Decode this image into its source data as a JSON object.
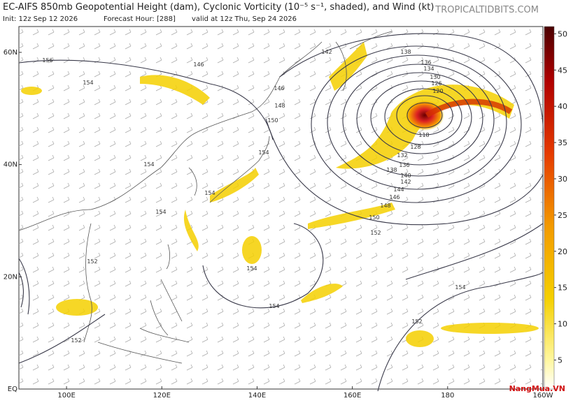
{
  "header": {
    "title": "EC-AIFS 850mb Geopotential Height (dam), Cyclonic Vorticity (10⁻⁵ s⁻¹, shaded), and Wind (kt)",
    "init": "Init: 12z Sep 12 2026",
    "forecast": "Forecast Hour: [288]",
    "valid": "valid at 12z Thu, Sep 24 2026",
    "brand": "TROPICALTIDBITS.COM"
  },
  "map": {
    "lon_lim": [
      90,
      200
    ],
    "lat_lim": [
      0,
      64.6
    ],
    "lon_ticks": [
      {
        "value": 100,
        "label": "100E"
      },
      {
        "value": 120,
        "label": "120E"
      },
      {
        "value": 140,
        "label": "140E"
      },
      {
        "value": 160,
        "label": "160E"
      },
      {
        "value": 180,
        "label": "180"
      },
      {
        "value": 200,
        "label": "160W"
      }
    ],
    "lat_ticks": [
      {
        "value": 60,
        "label": "60N"
      },
      {
        "value": 40,
        "label": "40N"
      },
      {
        "value": 20,
        "label": "20N"
      },
      {
        "value": 0,
        "label": "EQ"
      }
    ],
    "contour_labels": [
      "156",
      "154",
      "146",
      "142",
      "138",
      "136",
      "134",
      "130",
      "126",
      "120",
      "146",
      "148",
      "150",
      "154",
      "154",
      "154",
      "154",
      "152",
      "154",
      "154",
      "152",
      "152",
      "150",
      "148",
      "146",
      "144",
      "142",
      "140",
      "138",
      "136",
      "132",
      "128",
      "154",
      "152",
      "118"
    ]
  },
  "colorbar": {
    "lim": [
      1,
      51
    ],
    "ticks": [
      5,
      10,
      15,
      20,
      25,
      30,
      35,
      40,
      45,
      50
    ]
  },
  "watermark": "NangMua.VN"
}
